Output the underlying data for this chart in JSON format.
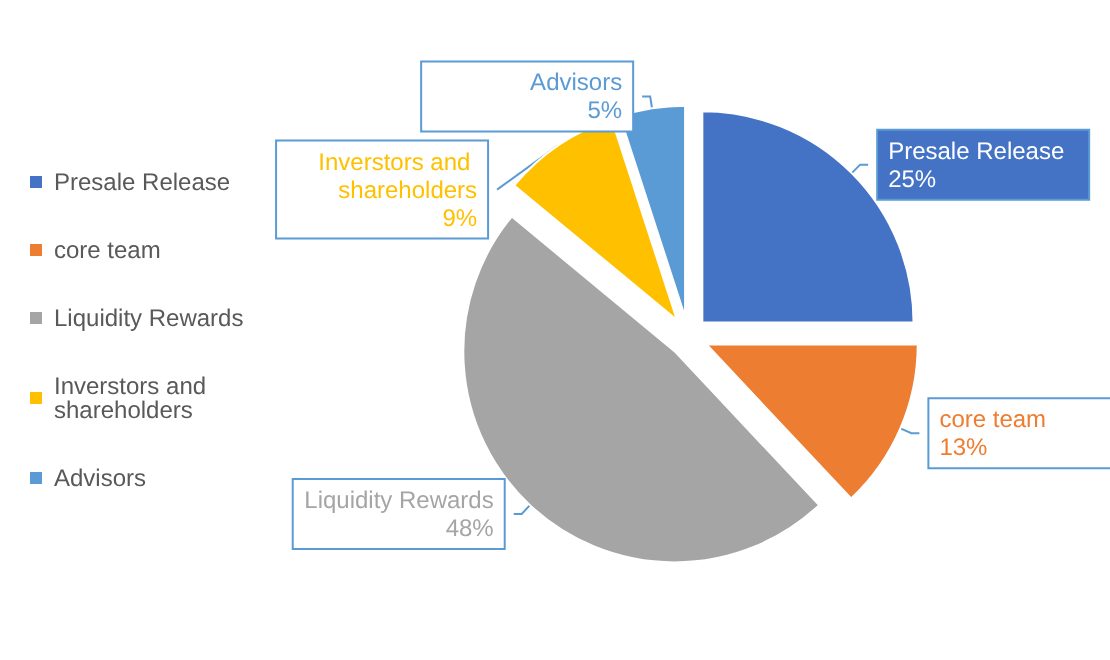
{
  "chart_data": {
    "type": "pie",
    "categories": [
      "Presale Release",
      "core team",
      "Liquidity Rewards",
      "Inverstors and shareholders",
      "Advisors"
    ],
    "values": [
      25,
      13,
      48,
      9,
      5
    ],
    "value_labels": [
      "25%",
      "13%",
      "48%",
      "9%",
      "5%"
    ],
    "colors": [
      "#4472c4",
      "#ed7d31",
      "#a5a5a5",
      "#ffc000",
      "#5b9bd5"
    ],
    "legend": "left"
  }
}
